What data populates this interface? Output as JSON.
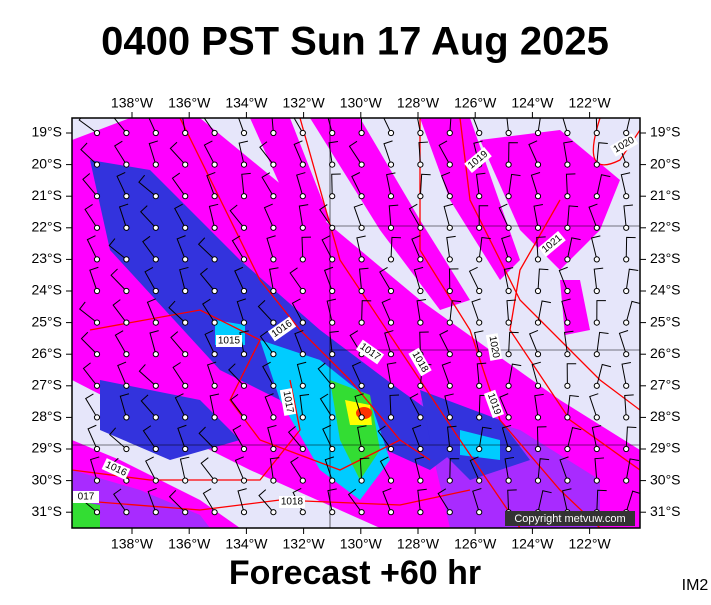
{
  "header": {
    "title": "0400 PST Sun 17 Aug 2025"
  },
  "map": {
    "longitude_labels": [
      "138°W",
      "136°W",
      "134°W",
      "132°W",
      "130°W",
      "128°W",
      "126°W",
      "124°W",
      "122°W"
    ],
    "latitude_labels": [
      "19°S",
      "20°S",
      "21°S",
      "22°S",
      "23°S",
      "24°S",
      "25°S",
      "26°S",
      "27°S",
      "28°S",
      "29°S",
      "30°S",
      "31°S"
    ],
    "isobar_labels": [
      "1020",
      "1019",
      "1021",
      "1016",
      "1015",
      "1017",
      "1018",
      "1020",
      "1019",
      "1017",
      "1016",
      "017",
      "1018"
    ],
    "copyright": "Copyright metvuw.com"
  },
  "footer": {
    "forecast": "Forecast +60 hr",
    "code": "IM2"
  }
}
